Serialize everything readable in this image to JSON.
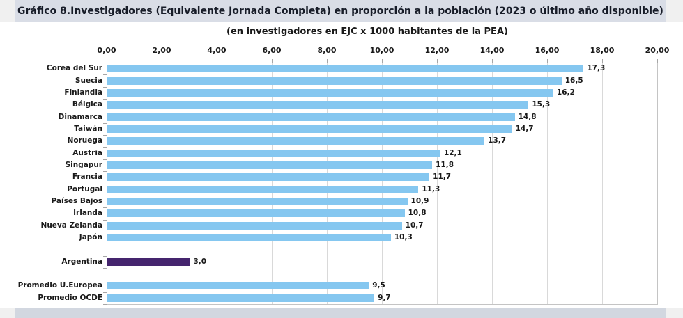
{
  "colors": {
    "bar_blue": "#85c7f0",
    "bar_highlight_purple": "#45256e",
    "title_band_bg": "#d9dde6",
    "bottom_band_bg": "#d2d7e0",
    "page_margin": "#f0f0f0",
    "grid": "#d9d9d9",
    "axis": "#a6a6a6",
    "text": "#1a1a1a"
  },
  "chart_data": {
    "type": "bar",
    "orientation": "horizontal",
    "title": "Gráfico 8.Investigadores (Equivalente Jornada Completa) en proporción a la población (2023 o último año disponible)",
    "subtitle": "(en investigadores en EJC x 1000 habitantes de la PEA)",
    "xlabel": "",
    "ylabel": "",
    "xlim": [
      0,
      20
    ],
    "x_ticks": [
      "0,00",
      "2,00",
      "4,00",
      "6,00",
      "8,00",
      "10,00",
      "12,00",
      "14,00",
      "16,00",
      "18,00",
      "20,00"
    ],
    "grid": true,
    "axis_position": "top",
    "rows": [
      {
        "label": "Corea del Sur",
        "value": 17.3,
        "display": "17,3"
      },
      {
        "label": "Suecia",
        "value": 16.5,
        "display": "16,5"
      },
      {
        "label": "Finlandia",
        "value": 16.2,
        "display": "16,2"
      },
      {
        "label": "Bélgica",
        "value": 15.3,
        "display": "15,3"
      },
      {
        "label": "Dinamarca",
        "value": 14.8,
        "display": "14,8"
      },
      {
        "label": "Taiwán",
        "value": 14.7,
        "display": "14,7"
      },
      {
        "label": "Noruega",
        "value": 13.7,
        "display": "13,7"
      },
      {
        "label": "Austria",
        "value": 12.1,
        "display": "12,1"
      },
      {
        "label": "Singapur",
        "value": 11.8,
        "display": "11,8"
      },
      {
        "label": "Francia",
        "value": 11.7,
        "display": "11,7"
      },
      {
        "label": "Portugal",
        "value": 11.3,
        "display": "11,3"
      },
      {
        "label": "Países Bajos",
        "value": 10.9,
        "display": "10,9"
      },
      {
        "label": "Irlanda",
        "value": 10.8,
        "display": "10,8"
      },
      {
        "label": "Nueva Zelanda",
        "value": 10.7,
        "display": "10,7"
      },
      {
        "label": "Japón",
        "value": 10.3,
        "display": "10,3"
      },
      {
        "spacer": true
      },
      {
        "label": "Argentina",
        "value": 3.0,
        "display": "3,0",
        "highlight": true
      },
      {
        "spacer": true
      },
      {
        "label": "Promedio U.Europea",
        "value": 9.5,
        "display": "9,5"
      },
      {
        "label": "Promedio OCDE",
        "value": 9.7,
        "display": "9,7"
      }
    ]
  }
}
